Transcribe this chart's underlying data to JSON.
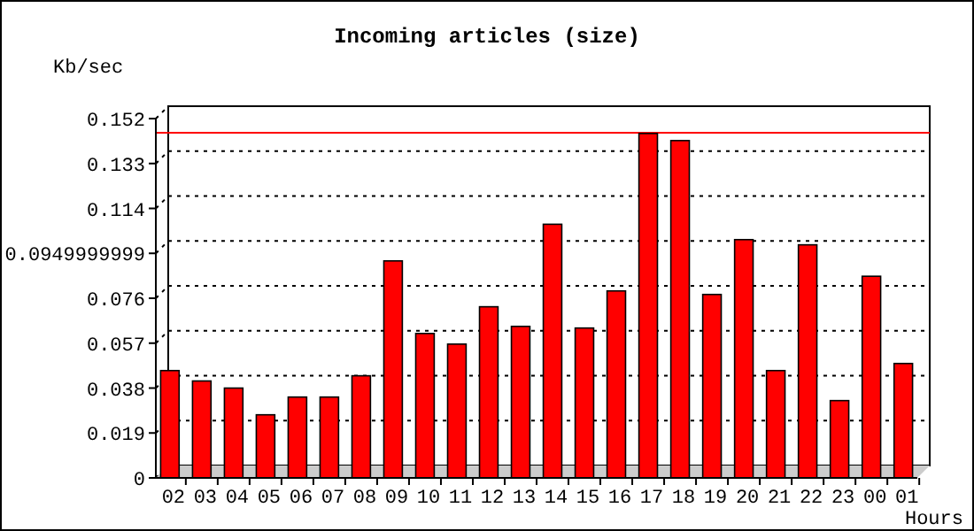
{
  "chart_data": {
    "type": "bar",
    "title": "Incoming articles (size)",
    "xlabel": "Hours",
    "ylabel": "Kb/sec",
    "categories": [
      "02",
      "03",
      "04",
      "05",
      "06",
      "07",
      "08",
      "09",
      "10",
      "11",
      "12",
      "13",
      "14",
      "15",
      "16",
      "17",
      "18",
      "19",
      "20",
      "21",
      "22",
      "23",
      "00",
      "01"
    ],
    "values": [
      0.0454,
      0.041,
      0.038,
      0.0267,
      0.0342,
      0.0342,
      0.0432,
      0.0918,
      0.0611,
      0.0566,
      0.0724,
      0.0641,
      0.1073,
      0.0634,
      0.0791,
      0.1457,
      0.1427,
      0.0776,
      0.1008,
      0.0454,
      0.0986,
      0.0327,
      0.0853,
      0.0484
    ],
    "color": "#ff0000",
    "ylim": [
      0,
      0.152
    ],
    "yticks": [
      0,
      0.019,
      0.038,
      0.057,
      0.076,
      0.0949999999,
      0.114,
      0.133,
      0.152
    ],
    "grid": "y",
    "ref_lines": [
      {
        "axis": "y",
        "value": 0.146,
        "color": "#ff0000"
      }
    ]
  }
}
